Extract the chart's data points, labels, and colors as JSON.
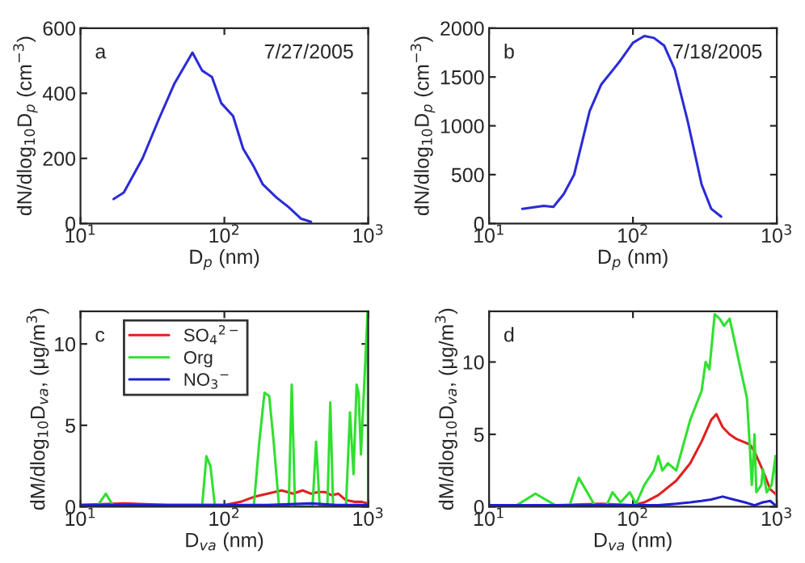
{
  "chart_data": [
    {
      "type": "line",
      "xlabel": "D$_{p}$ (nm)",
      "ylabel": "dN/dlog$_{10}$D$_{p}$ (cm$^{−3}$)",
      "annotations": [
        "a",
        "7/27/2005"
      ],
      "log": "x",
      "grid": false,
      "legend": false,
      "xlim": [
        10,
        1000
      ],
      "xticks": [
        {
          "value": 10,
          "label": "10$^{1}$"
        },
        {
          "value": 100,
          "label": "10$^{2}$"
        },
        {
          "value": 1000,
          "label": "10$^{3}$"
        }
      ],
      "ylim": [
        0,
        600
      ],
      "yticks": [
        0,
        200,
        400,
        600
      ],
      "series": [
        {
          "color": "#2b2bd9",
          "x": [
            17,
            20,
            27,
            35,
            45,
            60,
            70,
            82,
            95,
            115,
            135,
            160,
            185,
            230,
            280,
            340,
            400
          ],
          "values": [
            75,
            95,
            200,
            320,
            430,
            525,
            470,
            450,
            370,
            330,
            230,
            175,
            120,
            80,
            50,
            15,
            5
          ]
        }
      ]
    },
    {
      "type": "line",
      "xlabel": "D$_{p}$ (nm)",
      "ylabel": "dN/dlog$_{10}$D$_{p}$ (cm$^{−3}$)",
      "annotations": [
        "b",
        "7/18/2005"
      ],
      "log": "x",
      "grid": false,
      "legend": false,
      "xlim": [
        10,
        1000
      ],
      "xticks": [
        {
          "value": 10,
          "label": "10$^{1}$"
        },
        {
          "value": 100,
          "label": "10$^{2}$"
        },
        {
          "value": 1000,
          "label": "10$^{3}$"
        }
      ],
      "ylim": [
        0,
        2000
      ],
      "yticks": [
        0,
        500,
        1000,
        1500,
        2000
      ],
      "series": [
        {
          "color": "#2b2bd9",
          "x": [
            17,
            24,
            28,
            33,
            39,
            50,
            60,
            80,
            100,
            120,
            140,
            165,
            195,
            240,
            300,
            350,
            410
          ],
          "values": [
            150,
            180,
            170,
            300,
            500,
            1150,
            1420,
            1650,
            1850,
            1920,
            1900,
            1820,
            1580,
            1050,
            400,
            150,
            70
          ]
        }
      ]
    },
    {
      "type": "line",
      "xlabel": "D$_{va}$ (nm)",
      "ylabel": "dM/dlog$_{10}$D$_{va}$, (μg/m$^{3}$)",
      "annotations": [
        "c"
      ],
      "log": "x",
      "grid": false,
      "legend": "top left",
      "xlim": [
        10,
        1000
      ],
      "xticks": [
        {
          "value": 10,
          "label": "10$^{1}$"
        },
        {
          "value": 100,
          "label": "10$^{2}$"
        },
        {
          "value": 1000,
          "label": "10$^{3}$"
        }
      ],
      "ylim": [
        0,
        12
      ],
      "yticks": [
        0,
        5,
        10
      ],
      "series": [
        {
          "name": "SO$_{4}$$^{2−}$",
          "color": "#e02020",
          "x": [
            10,
            20,
            40,
            80,
            100,
            130,
            160,
            200,
            250,
            300,
            350,
            400,
            450,
            500,
            560,
            620,
            700,
            800,
            900,
            1000
          ],
          "values": [
            0.1,
            0.2,
            0.1,
            0.1,
            0.1,
            0.3,
            0.6,
            0.8,
            1.0,
            0.8,
            1.0,
            0.8,
            0.9,
            0.9,
            0.7,
            0.8,
            0.4,
            0.3,
            0.3,
            0.2
          ]
        },
        {
          "name": "Org",
          "color": "#30e030",
          "x": [
            10,
            13,
            15,
            17,
            70,
            75,
            80,
            86,
            160,
            175,
            190,
            205,
            220,
            240,
            280,
            294,
            310,
            410,
            434,
            460,
            520,
            545,
            570,
            700,
            747,
            790,
            830,
            857,
            890,
            940,
            990,
            1000
          ],
          "values": [
            0,
            0,
            0.8,
            0,
            0,
            3.1,
            2.5,
            0,
            0,
            4.0,
            7.0,
            6.8,
            4.0,
            0,
            0,
            7.5,
            0,
            0,
            4.0,
            0,
            0,
            6.4,
            0,
            0,
            5.8,
            2.0,
            7.5,
            7.0,
            3.2,
            7.7,
            12,
            0
          ]
        },
        {
          "name": "NO$_{3}$$^{−}$",
          "color": "#2020d0",
          "x": [
            10,
            100,
            200,
            400,
            600,
            800,
            1000
          ],
          "values": [
            0.1,
            0.1,
            0.1,
            0.2,
            0.1,
            0.1,
            0.1
          ]
        }
      ]
    },
    {
      "type": "line",
      "xlabel": "D$_{va}$ (nm)",
      "ylabel": "dM/dlog$_{10}$D$_{va}$, (μg/m$^{3}$)",
      "annotations": [
        "d"
      ],
      "log": "x",
      "grid": false,
      "legend": false,
      "xlim": [
        10,
        1000
      ],
      "xticks": [
        {
          "value": 10,
          "label": "10$^{1}$"
        },
        {
          "value": 100,
          "label": "10$^{2}$"
        },
        {
          "value": 1000,
          "label": "10$^{3}$"
        }
      ],
      "ylim": [
        0,
        13.5
      ],
      "yticks": [
        0,
        5,
        10
      ],
      "series": [
        {
          "color": "#e02020",
          "x": [
            10,
            30,
            60,
            100,
            120,
            150,
            200,
            250,
            300,
            350,
            380,
            420,
            470,
            520,
            580,
            650,
            700,
            800,
            900,
            1000
          ],
          "values": [
            0.1,
            0.1,
            0.2,
            0.1,
            0.3,
            0.8,
            1.8,
            3.0,
            4.5,
            6.0,
            6.4,
            5.5,
            5.0,
            4.7,
            4.5,
            4.3,
            3.8,
            2.5,
            1.2,
            0.8
          ]
        },
        {
          "color": "#30e030",
          "x": [
            10,
            15,
            21,
            30,
            36,
            42,
            55,
            65,
            72,
            82,
            95,
            105,
            120,
            140,
            150,
            160,
            175,
            200,
            220,
            250,
            300,
            320,
            340,
            370,
            400,
            430,
            470,
            520,
            560,
            620,
            650,
            670,
            700,
            720,
            780,
            800,
            850,
            920,
            980,
            1000
          ],
          "values": [
            0,
            0,
            0.9,
            0,
            0,
            2.0,
            0,
            0,
            1.0,
            0.3,
            1.0,
            0.2,
            1.5,
            2.5,
            3.5,
            2.5,
            3.0,
            2.5,
            4.0,
            6.0,
            8.0,
            10.0,
            9.5,
            13.3,
            13.0,
            12.5,
            13.0,
            11.0,
            9.5,
            7.5,
            4.0,
            1.5,
            5.0,
            1.0,
            1.5,
            2.6,
            1.0,
            1.5,
            3.5,
            0
          ]
        },
        {
          "color": "#2020d0",
          "x": [
            10,
            100,
            150,
            200,
            250,
            300,
            350,
            420,
            500,
            600,
            700,
            800,
            900,
            1000
          ],
          "values": [
            0.1,
            0.1,
            0.1,
            0.2,
            0.3,
            0.4,
            0.5,
            0.7,
            0.5,
            0.3,
            0.1,
            0.3,
            0.4,
            0
          ]
        }
      ]
    }
  ]
}
